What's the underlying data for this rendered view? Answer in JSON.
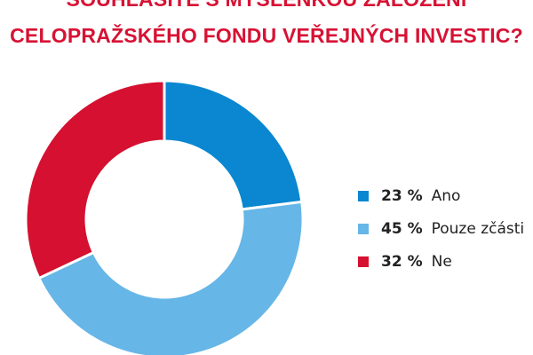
{
  "chart_data": {
    "type": "pie",
    "variant": "donut",
    "title_lines": [
      "SOUHLASÍTE S MYŠLENKOU ZALOŽENÍ",
      "CELOPRAŽSKÉHO FONDU VEŘEJNÝCH INVESTIC?"
    ],
    "legend_position": "right",
    "slices": [
      {
        "label": "Ano",
        "value": 23,
        "value_label": "23 %",
        "color": "#0a87d0"
      },
      {
        "label": "Pouze zčásti",
        "value": 45,
        "value_label": "45 %",
        "color": "#66b6e7"
      },
      {
        "label": "Ne",
        "value": 32,
        "value_label": "32 %",
        "color": "#d51030"
      }
    ]
  }
}
